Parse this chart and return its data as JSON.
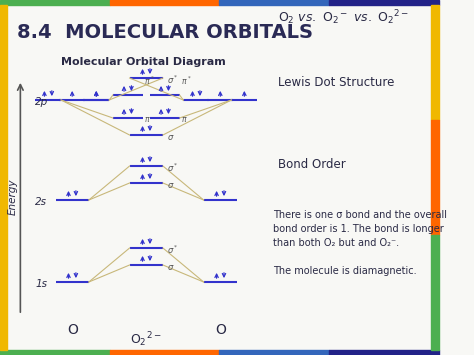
{
  "title": "8.4  MOLECULAR ORBITALS",
  "mo_diagram_title": "Molecular Orbital Diagram",
  "right_section_title": "Lewis Dot Structure",
  "bond_order_label": "Bond Order",
  "desc1": "There is one σ bond and the overall",
  "desc2": "bond order is 1. The bond is longer",
  "desc3": "than both O₂ but and O₂⁻.",
  "desc4": "The molecule is diamagnetic.",
  "energy_label": "Energy",
  "left_atom_label": "O",
  "right_atom_label": "O",
  "center_label": "O$_2$$^{2-}$",
  "bg_color": "#f8f8f5",
  "line_color": "#c8b87a",
  "text_color": "#2a2a45",
  "orbital_color": "#3333cc",
  "label_color": "#555555",
  "title_color": "#2a2a55",
  "stripe_top": [
    "#4CAF50",
    "#FF9800",
    "#2196F3",
    "#9C27B0"
  ],
  "stripe_left": "#f0b800",
  "stripe_right": "#f0b800",
  "stripe_bottom_colors": [
    "#4CAF50",
    "#FF9800",
    "#2196F3",
    "#9C27B0"
  ]
}
